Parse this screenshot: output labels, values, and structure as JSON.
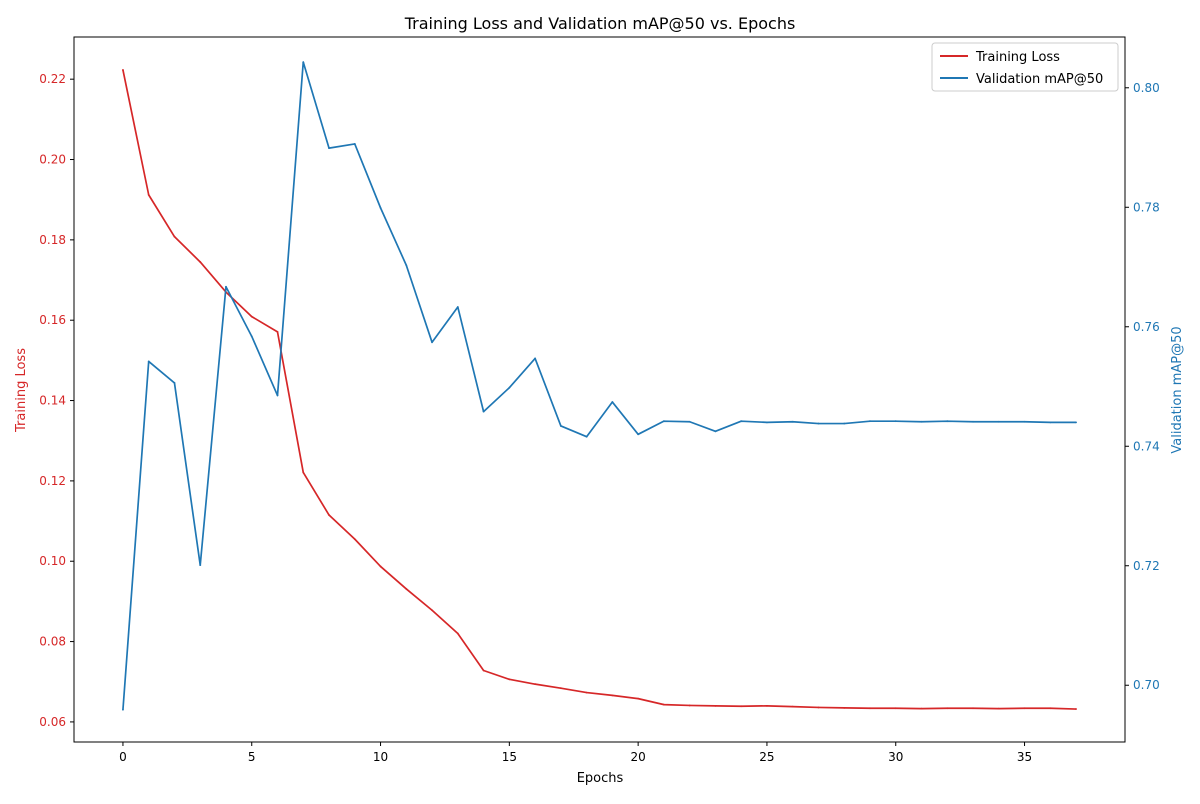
{
  "chart_data": {
    "type": "line",
    "title": "Training Loss and Validation mAP@50 vs. Epochs",
    "xlabel": "Epochs",
    "xlim": [
      -1.9,
      38.9
    ],
    "xticks": [
      0,
      5,
      10,
      15,
      20,
      25,
      30,
      35
    ],
    "x": [
      0,
      1,
      2,
      3,
      4,
      5,
      6,
      7,
      8,
      9,
      10,
      11,
      12,
      13,
      14,
      15,
      16,
      17,
      18,
      19,
      20,
      21,
      22,
      23,
      24,
      25,
      26,
      27,
      28,
      29,
      30,
      31,
      32,
      33,
      34,
      35,
      36,
      37
    ],
    "grid": false,
    "legend_position": "top-right",
    "left_axis": {
      "label": "Training Loss",
      "color": "#d62728",
      "ylim": [
        0.055,
        0.2305
      ],
      "ticks": [
        0.06,
        0.08,
        0.1,
        0.12,
        0.14,
        0.16,
        0.18,
        0.2,
        0.22
      ],
      "tick_labels": [
        "0.06",
        "0.08",
        "0.10",
        "0.12",
        "0.14",
        "0.16",
        "0.18",
        "0.20",
        "0.22"
      ]
    },
    "right_axis": {
      "label": "Validation mAP@50",
      "color": "#1f77b4",
      "ylim": [
        0.6905,
        0.8085
      ],
      "ticks": [
        0.7,
        0.72,
        0.74,
        0.76,
        0.78,
        0.8
      ],
      "tick_labels": [
        "0.70",
        "0.72",
        "0.74",
        "0.76",
        "0.78",
        "0.80"
      ]
    },
    "series": [
      {
        "name": "Training Loss",
        "axis": "left",
        "color": "#d62728",
        "values": [
          0.2223,
          0.1912,
          0.1808,
          0.1745,
          0.167,
          0.1609,
          0.1571,
          0.1221,
          0.1115,
          0.1055,
          0.0987,
          0.0931,
          0.0878,
          0.082,
          0.0728,
          0.0706,
          0.0694,
          0.0684,
          0.0673,
          0.0666,
          0.0658,
          0.0643,
          0.0641,
          0.064,
          0.0639,
          0.064,
          0.0638,
          0.0636,
          0.0635,
          0.0634,
          0.0634,
          0.0633,
          0.0634,
          0.0634,
          0.0633,
          0.0634,
          0.0634,
          0.0632
        ]
      },
      {
        "name": "Validation mAP@50",
        "axis": "right",
        "color": "#1f77b4",
        "values": [
          0.6959,
          0.7542,
          0.7506,
          0.7201,
          0.7667,
          0.7584,
          0.7485,
          0.8043,
          0.7899,
          0.7906,
          0.7799,
          0.7703,
          0.7574,
          0.7633,
          0.7458,
          0.7498,
          0.7547,
          0.7434,
          0.7416,
          0.7474,
          0.742,
          0.7442,
          0.7441,
          0.7425,
          0.7442,
          0.744,
          0.7441,
          0.7438,
          0.7438,
          0.7442,
          0.7442,
          0.7441,
          0.7442,
          0.7441,
          0.7441,
          0.7441,
          0.744,
          0.744
        ]
      }
    ]
  }
}
